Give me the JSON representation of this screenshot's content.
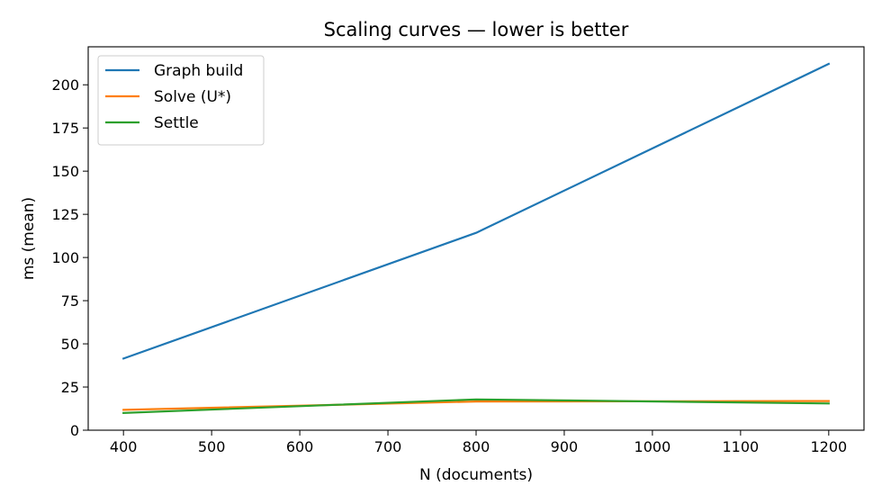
{
  "chart_data": {
    "type": "line",
    "title": "Scaling curves — lower is better",
    "xlabel": "N (documents)",
    "ylabel": "ms (mean)",
    "x": [
      400,
      800,
      1200
    ],
    "xlim": [
      360,
      1240
    ],
    "ylim": [
      0,
      222
    ],
    "xticks": [
      "400",
      "500",
      "600",
      "700",
      "800",
      "900",
      "1000",
      "1100",
      "1200"
    ],
    "yticks": [
      "0",
      "25",
      "50",
      "75",
      "100",
      "125",
      "150",
      "175",
      "200"
    ],
    "grid": false,
    "legend_position": "top-left",
    "series": [
      {
        "name": "Graph build",
        "color": "#1f77b4",
        "values": [
          41.5,
          114.3,
          212.1
        ]
      },
      {
        "name": "Solve (U*)",
        "color": "#ff7f0e",
        "values": [
          11.8,
          16.6,
          16.9
        ]
      },
      {
        "name": "Settle",
        "color": "#2ca02c",
        "values": [
          10.0,
          17.8,
          15.5
        ]
      }
    ]
  }
}
